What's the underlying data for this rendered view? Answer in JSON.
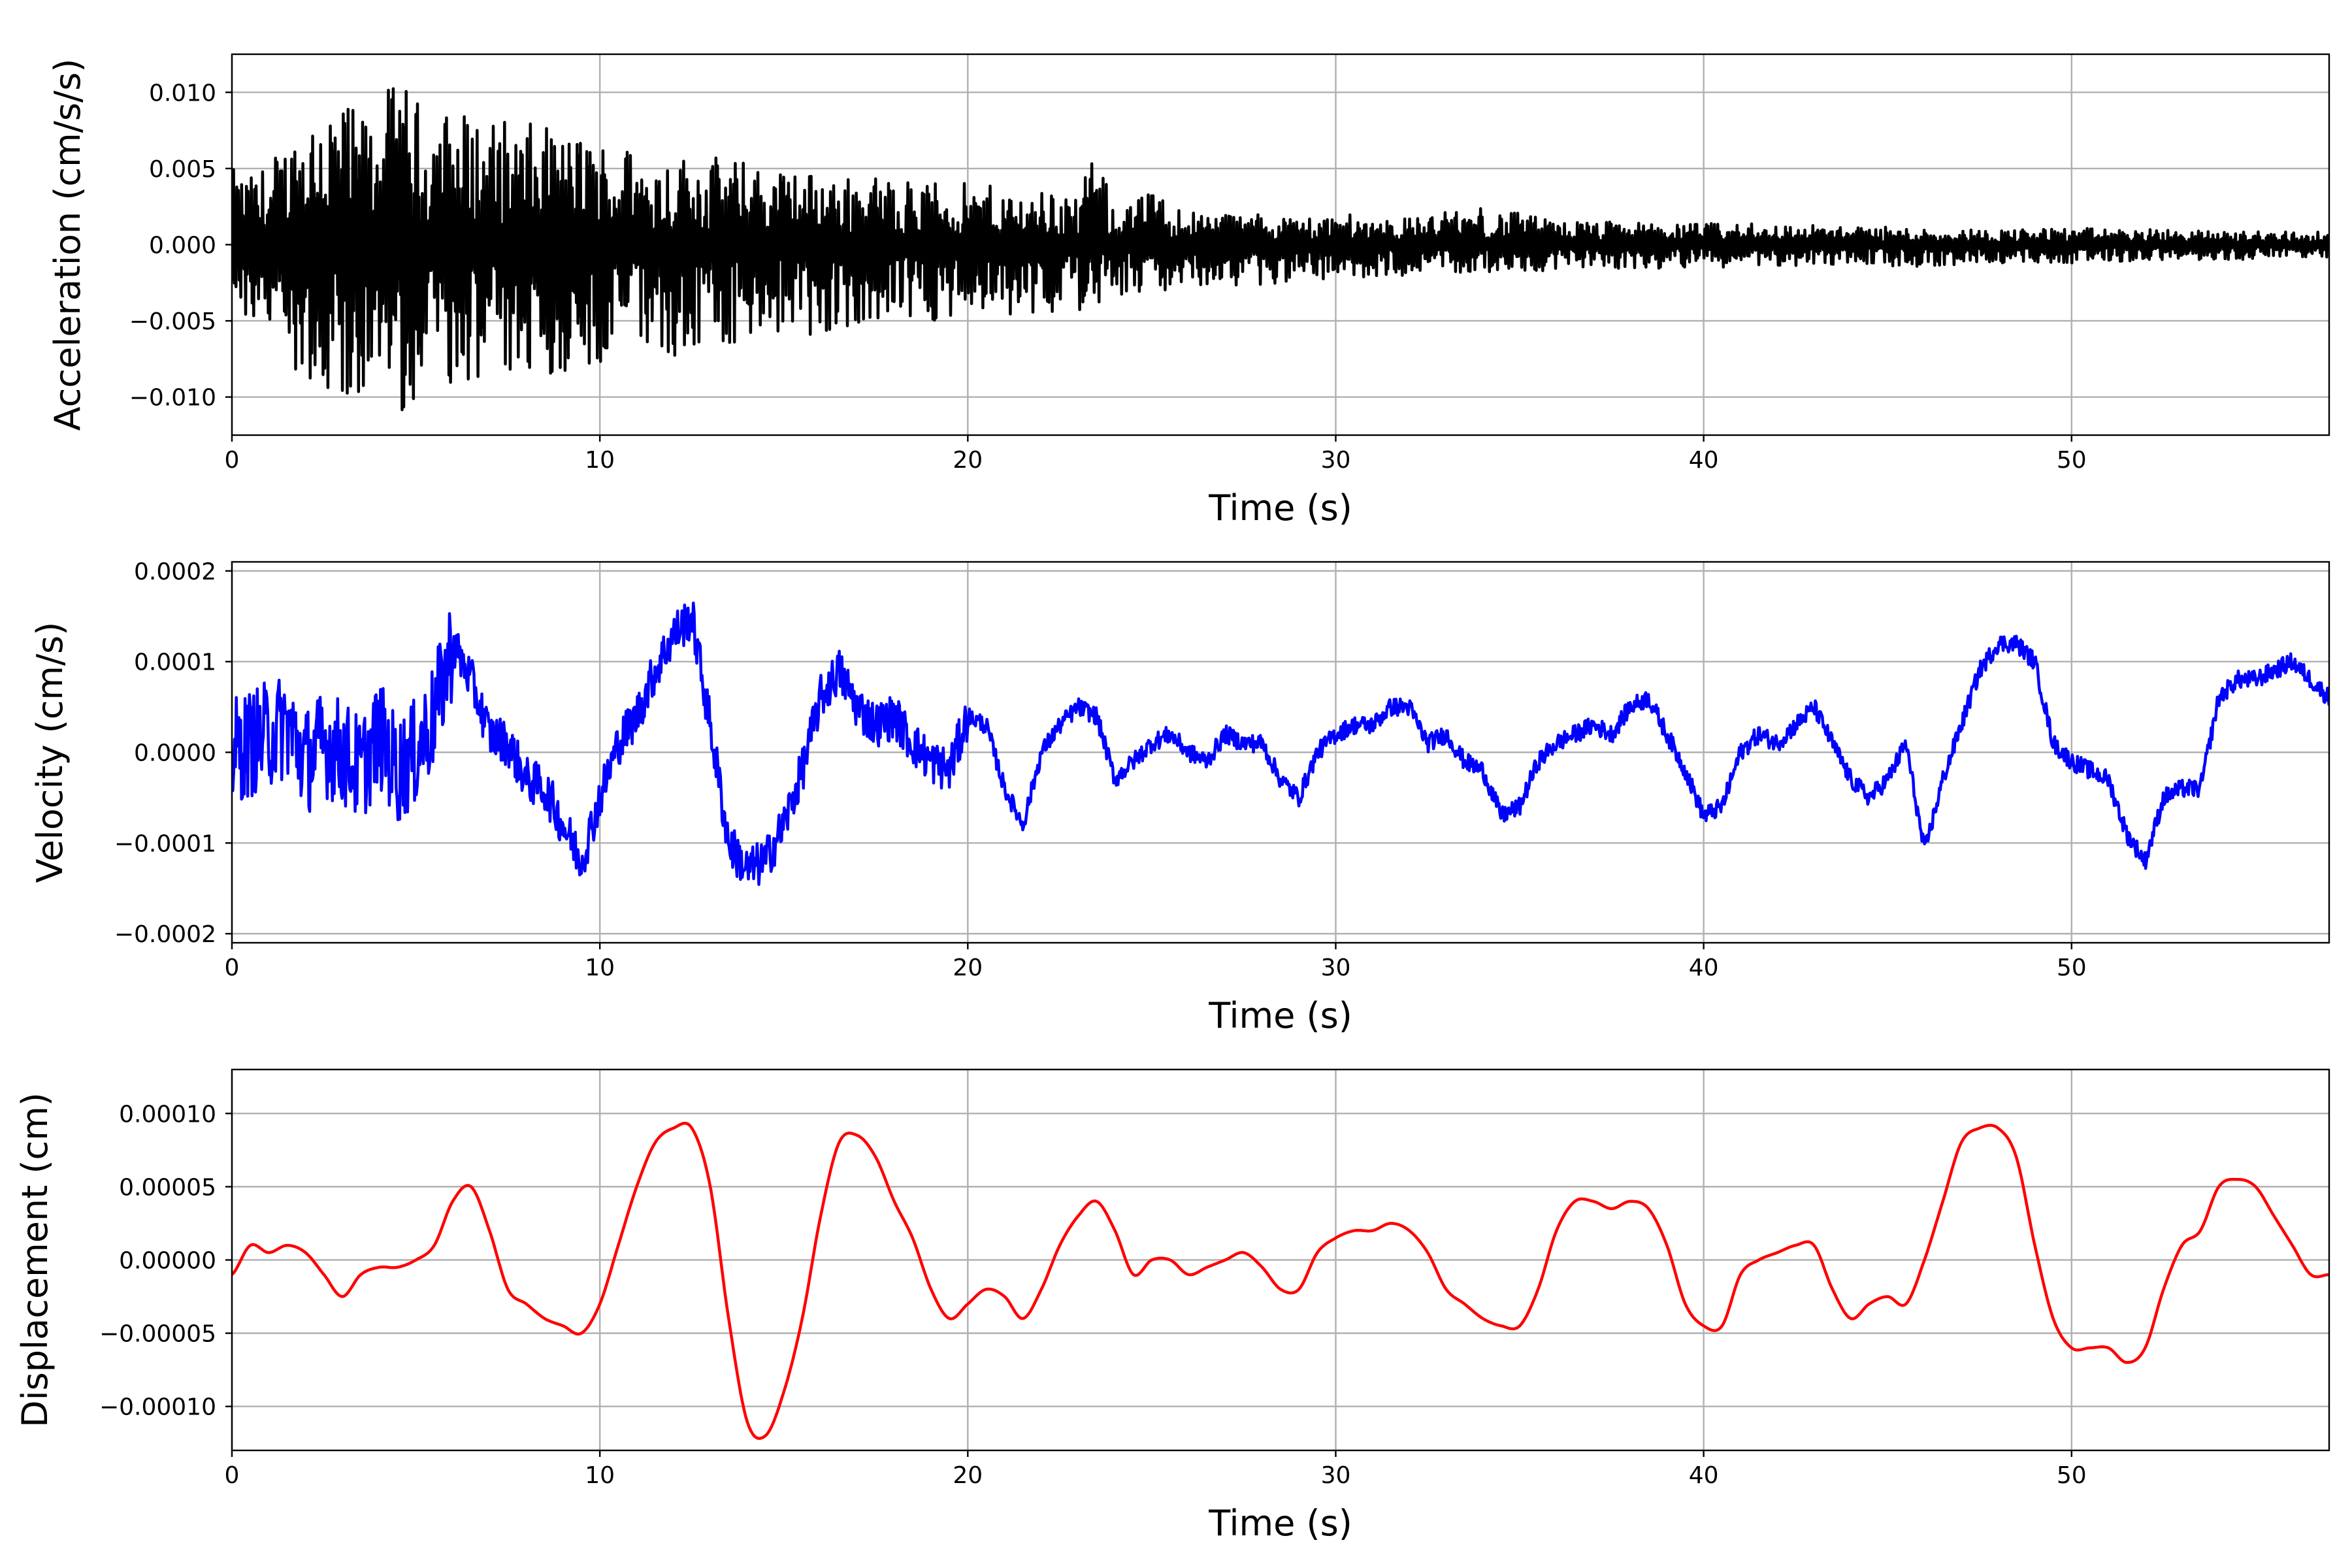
{
  "chart_data": [
    {
      "type": "line",
      "ylabel": "Acceleration (cm/s/s)",
      "xlabel": "Time (s)",
      "xlim": [
        0,
        57
      ],
      "ylim": [
        -0.0125,
        0.0125
      ],
      "xticks": [
        "0",
        "10",
        "20",
        "30",
        "40",
        "50"
      ],
      "xtick_values": [
        0,
        10,
        20,
        30,
        40,
        50
      ],
      "yticks": [
        "−0.010",
        "−0.005",
        "0.000",
        "0.005",
        "0.010"
      ],
      "ytick_values": [
        -0.01,
        -0.005,
        0,
        0.005,
        0.01
      ],
      "grid": true,
      "color": "#000000",
      "series": [
        {
          "x": [
            0,
            0.5,
            1,
            1.5,
            2,
            2.5,
            3,
            3.5,
            4,
            4.5,
            5,
            6,
            7,
            8,
            9,
            10,
            11,
            12,
            13,
            14,
            15,
            16,
            17,
            18,
            19,
            20,
            21,
            22,
            23,
            23.5,
            24,
            25,
            26,
            27,
            28,
            29,
            30,
            32,
            34,
            36,
            38,
            40,
            42,
            44,
            46,
            48,
            50,
            52,
            54,
            55,
            56,
            57
          ],
          "y_upper": [
            0.005,
            0.0045,
            0.0055,
            0.007,
            0.009,
            0.0105,
            0.0095,
            0.0085,
            0.0095,
            0.011,
            0.0095,
            0.009,
            0.0085,
            0.008,
            0.0075,
            0.007,
            0.0065,
            0.006,
            0.006,
            0.0055,
            0.005,
            0.0048,
            0.0045,
            0.0045,
            0.0042,
            0.004,
            0.0038,
            0.0036,
            0.0035,
            0.006,
            0.0025,
            0.0035,
            0.0023,
            0.0022,
            0.002,
            0.0019,
            0.002,
            0.0018,
            0.0025,
            0.0016,
            0.0015,
            0.0014,
            0.0014,
            0.0012,
            0.0011,
            0.001,
            0.0011,
            0.001,
            0.0009,
            0.0009,
            0.0009,
            0.0008
          ],
          "y_lower": [
            -0.004,
            -0.0055,
            -0.006,
            -0.0075,
            -0.009,
            -0.0095,
            -0.0105,
            -0.011,
            -0.01,
            -0.0115,
            -0.01,
            -0.0095,
            -0.009,
            -0.0095,
            -0.0085,
            -0.008,
            -0.0075,
            -0.0075,
            -0.007,
            -0.0065,
            -0.0065,
            -0.006,
            -0.0055,
            -0.0052,
            -0.005,
            -0.0048,
            -0.0046,
            -0.0045,
            -0.0045,
            -0.004,
            -0.0035,
            -0.0033,
            -0.003,
            -0.0028,
            -0.0026,
            -0.0025,
            -0.0022,
            -0.002,
            -0.0018,
            -0.0017,
            -0.0016,
            -0.0015,
            -0.0014,
            -0.0013,
            -0.0015,
            -0.0012,
            -0.0012,
            -0.0011,
            -0.001,
            -0.001,
            -0.0009,
            -0.0009
          ]
        }
      ]
    },
    {
      "type": "line",
      "ylabel": "Velocity (cm/s)",
      "xlabel": "Time (s)",
      "xlim": [
        0,
        57
      ],
      "ylim": [
        -0.00021,
        0.00021
      ],
      "xticks": [
        "0",
        "10",
        "20",
        "30",
        "40",
        "50"
      ],
      "xtick_values": [
        0,
        10,
        20,
        30,
        40,
        50
      ],
      "yticks": [
        "−0.0002",
        "−0.0001",
        "0.0000",
        "0.0001",
        "0.0002"
      ],
      "ytick_values": [
        -0.0002,
        -0.0001,
        0,
        0.0001,
        0.0002
      ],
      "grid": true,
      "color": "#0000ff",
      "series": [
        {
          "x": [
            0,
            0.5,
            1,
            1.5,
            2,
            2.5,
            3,
            3.5,
            4,
            4.5,
            5,
            5.5,
            6,
            6.5,
            7,
            7.5,
            8,
            8.5,
            9,
            9.5,
            10,
            10.5,
            11,
            11.5,
            12,
            12.5,
            13,
            13.5,
            14,
            14.5,
            15,
            15.5,
            16,
            16.5,
            17,
            17.5,
            18,
            18.5,
            19,
            19.5,
            20,
            20.5,
            21,
            21.5,
            22,
            22.5,
            23,
            23.5,
            24,
            24.5,
            25,
            25.5,
            26,
            26.5,
            27,
            27.5,
            28,
            28.5,
            29,
            29.5,
            30,
            30.5,
            31,
            31.5,
            32,
            32.5,
            33,
            33.5,
            34,
            34.5,
            35,
            35.5,
            36,
            36.5,
            37,
            37.5,
            38,
            38.5,
            39,
            39.5,
            40,
            40.5,
            41,
            41.5,
            42,
            42.5,
            43,
            43.5,
            44,
            44.5,
            45,
            45.5,
            46,
            46.5,
            47,
            47.5,
            48,
            48.5,
            49,
            49.5,
            50,
            50.5,
            51,
            51.5,
            52,
            52.5,
            53,
            53.5,
            54,
            54.5,
            55,
            55.5,
            56,
            56.5,
            57
          ],
          "y": [
            0,
            1e-05,
            2e-05,
            3e-05,
            -1e-05,
            1e-05,
            0,
            -2e-05,
            2e-05,
            -2e-05,
            0,
            4e-05,
            0.00012,
            8e-05,
            2e-05,
            1e-05,
            -3e-05,
            -4e-05,
            -8e-05,
            -0.00012,
            -5e-05,
            1e-05,
            4e-05,
            9e-05,
            0.00013,
            0.00015,
            3e-05,
            -0.0001,
            -0.00013,
            -0.00012,
            -8e-05,
            -2e-05,
            6e-05,
            9e-05,
            5e-05,
            3e-05,
            4e-05,
            1e-05,
            -1e-05,
            -2e-05,
            4e-05,
            3e-05,
            -4e-05,
            -8e-05,
            0,
            3e-05,
            5e-05,
            4e-05,
            -3e-05,
            -1e-05,
            1e-05,
            2e-05,
            0,
            -1e-05,
            2e-05,
            1e-05,
            1e-05,
            -3e-05,
            -5e-05,
            0,
            2e-05,
            3e-05,
            3e-05,
            5e-05,
            5e-05,
            1e-05,
            2e-05,
            -1e-05,
            -2e-05,
            -7e-05,
            -6e-05,
            -1e-05,
            1e-05,
            2e-05,
            3e-05,
            2e-05,
            5e-05,
            6e-05,
            2e-05,
            -2e-05,
            -7e-05,
            -6e-05,
            0,
            2e-05,
            1e-05,
            3e-05,
            5e-05,
            1e-05,
            -3e-05,
            -5e-05,
            -3e-05,
            1e-05,
            -0.00011,
            -3e-05,
            3e-05,
            9e-05,
            0.00012,
            0.00012,
            0.0001,
            1e-05,
            -1e-05,
            -2e-05,
            -3e-05,
            -9e-05,
            -0.00012,
            -5e-05,
            -4e-05,
            -4e-05,
            6e-05,
            8e-05,
            8e-05,
            9e-05,
            0.0001,
            8e-05,
            6e-05
          ]
        }
      ]
    },
    {
      "type": "line",
      "ylabel": "Displacement (cm)",
      "xlabel": "Time (s)",
      "xlim": [
        0,
        57
      ],
      "ylim": [
        -0.00013,
        0.00013
      ],
      "xticks": [
        "0",
        "10",
        "20",
        "30",
        "40",
        "50"
      ],
      "xtick_values": [
        0,
        10,
        20,
        30,
        40,
        50
      ],
      "yticks": [
        "−0.00010",
        "−0.00005",
        "0.00000",
        "0.00005",
        "0.00010"
      ],
      "ytick_values": [
        -0.0001,
        -5e-05,
        0,
        5e-05,
        0.0001
      ],
      "grid": true,
      "color": "#ff0000",
      "series": [
        {
          "x": [
            0,
            0.5,
            1,
            1.5,
            2,
            2.5,
            3,
            3.5,
            4,
            4.5,
            5,
            5.5,
            6,
            6.5,
            7,
            7.5,
            8,
            8.5,
            9,
            9.5,
            10,
            10.5,
            11,
            11.5,
            12,
            12.5,
            13,
            13.5,
            14,
            14.5,
            15,
            15.5,
            16,
            16.5,
            17,
            17.5,
            18,
            18.5,
            19,
            19.5,
            20,
            20.5,
            21,
            21.5,
            22,
            22.5,
            23,
            23.5,
            24,
            24.5,
            25,
            25.5,
            26,
            26.5,
            27,
            27.5,
            28,
            28.5,
            29,
            29.5,
            30,
            30.5,
            31,
            31.5,
            32,
            32.5,
            33,
            33.5,
            34,
            34.5,
            35,
            35.5,
            36,
            36.5,
            37,
            37.5,
            38,
            38.5,
            39,
            39.5,
            40,
            40.5,
            41,
            41.5,
            42,
            42.5,
            43,
            43.5,
            44,
            44.5,
            45,
            45.5,
            46,
            46.5,
            47,
            47.5,
            48,
            48.5,
            49,
            49.5,
            50,
            50.5,
            51,
            51.5,
            52,
            52.5,
            53,
            53.5,
            54,
            54.5,
            55,
            55.5,
            56,
            56.5,
            57
          ],
          "y": [
            -1e-05,
            1e-05,
            5e-06,
            1e-05,
            5e-06,
            -1e-05,
            -2.5e-05,
            -1e-05,
            -5e-06,
            -5e-06,
            0,
            1e-05,
            4e-05,
            5e-05,
            2e-05,
            -2e-05,
            -3e-05,
            -4e-05,
            -4.5e-05,
            -5e-05,
            -3e-05,
            1e-05,
            5e-05,
            8e-05,
            9e-05,
            9e-05,
            5e-05,
            -4e-05,
            -0.00011,
            -0.00012,
            -9e-05,
            -4e-05,
            3e-05,
            8e-05,
            8.5e-05,
            7e-05,
            4e-05,
            1.5e-05,
            -2e-05,
            -4e-05,
            -3e-05,
            -2e-05,
            -2.5e-05,
            -4e-05,
            -2e-05,
            1e-05,
            3e-05,
            4e-05,
            2e-05,
            -1e-05,
            0,
            0,
            -1e-05,
            -5e-06,
            0,
            5e-06,
            -5e-06,
            -2e-05,
            -2e-05,
            5e-06,
            1.5e-05,
            2e-05,
            2e-05,
            2.5e-05,
            2e-05,
            5e-06,
            -2e-05,
            -3e-05,
            -4e-05,
            -4.5e-05,
            -4.5e-05,
            -2e-05,
            2e-05,
            4e-05,
            4e-05,
            3.5e-05,
            4e-05,
            3.5e-05,
            1e-05,
            -3e-05,
            -4.5e-05,
            -4.5e-05,
            -1e-05,
            0,
            5e-06,
            1e-05,
            1e-05,
            -2e-05,
            -4e-05,
            -3e-05,
            -2.5e-05,
            -3e-05,
            0,
            4e-05,
            8e-05,
            9e-05,
            9e-05,
            7e-05,
            1e-05,
            -4e-05,
            -6e-05,
            -6e-05,
            -6e-05,
            -7e-05,
            -6e-05,
            -2e-05,
            1e-05,
            2e-05,
            5e-05,
            5.5e-05,
            5e-05,
            3e-05,
            1e-05,
            -1e-05,
            -1e-05
          ]
        }
      ]
    }
  ]
}
